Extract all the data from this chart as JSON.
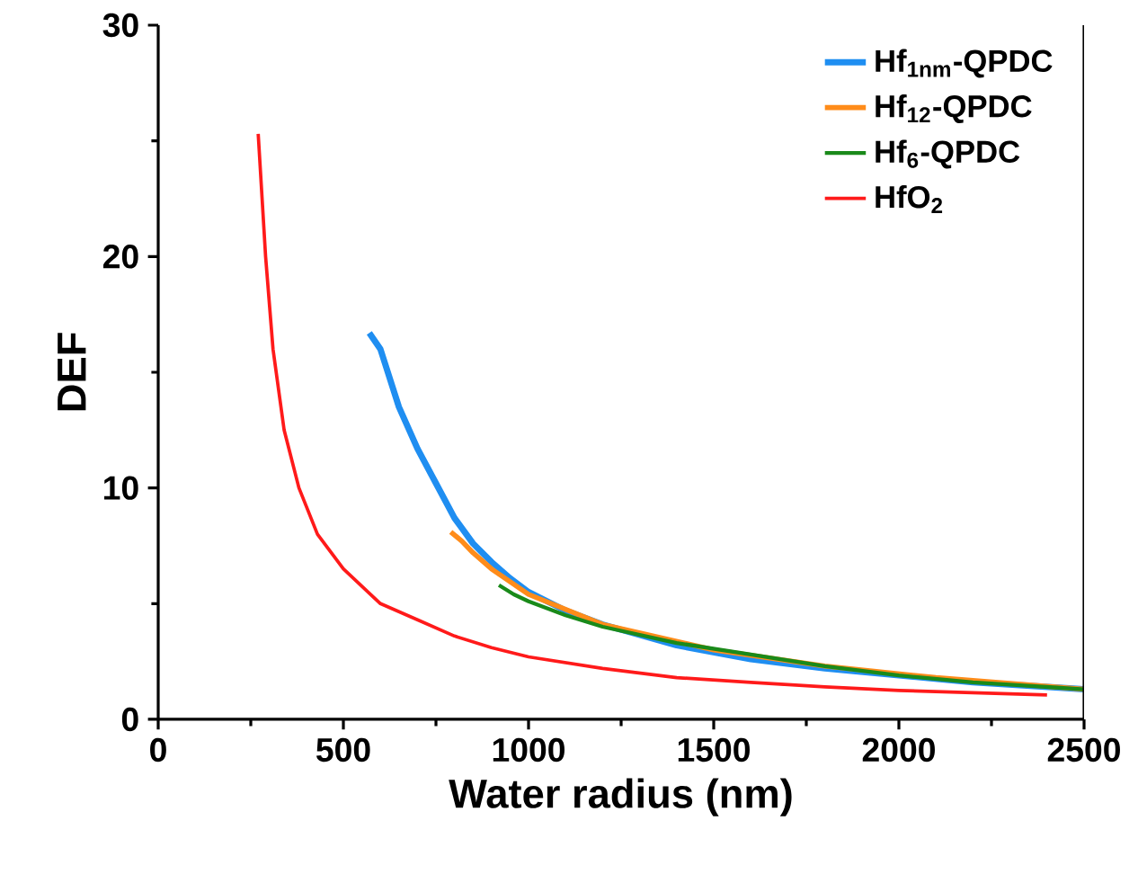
{
  "chart_data": {
    "type": "line",
    "xlabel": "Water radius (nm)",
    "ylabel": "DEF",
    "xlim": [
      0,
      2500
    ],
    "ylim": [
      0,
      30
    ],
    "xticks": [
      0,
      500,
      1000,
      1500,
      2000,
      2500
    ],
    "yticks": [
      0,
      10,
      20,
      30
    ],
    "grid": false,
    "legend": "top right",
    "marker": "none",
    "line_style": "solid",
    "series": [
      {
        "name": "Hf$_{1nm}$-QPDC",
        "color": "#1f8ef1",
        "x": [
          570,
          600,
          650,
          700,
          750,
          800,
          850,
          900,
          950,
          1000,
          1100,
          1200,
          1400,
          1600,
          1800,
          2000,
          2200,
          2500
        ],
        "values": [
          16.7,
          16,
          13.5,
          11.7,
          10.2,
          8.7,
          7.6,
          6.8,
          6.1,
          5.5,
          4.7,
          4.1,
          3.2,
          2.6,
          2.2,
          1.9,
          1.6,
          1.3
        ]
      },
      {
        "name": "Hf$_{12}$-QPDC",
        "color": "#ff8c1a",
        "x": [
          790,
          820,
          850,
          900,
          1000,
          1200,
          1500,
          1800,
          2100,
          2500
        ],
        "values": [
          8.1,
          7.7,
          7.2,
          6.5,
          5.4,
          4.1,
          3.0,
          2.3,
          1.8,
          1.3
        ]
      },
      {
        "name": "Hf$_{6}$-QPDC",
        "color": "#1a8a1a",
        "x": [
          920,
          960,
          1000,
          1100,
          1200,
          1400,
          1600,
          1800,
          2000,
          2200,
          2500
        ],
        "values": [
          5.8,
          5.4,
          5.1,
          4.5,
          4.0,
          3.3,
          2.8,
          2.3,
          1.9,
          1.6,
          1.3
        ]
      },
      {
        "name": "HfO$_{2}$",
        "color": "#ff1a1a",
        "x": [
          270,
          290,
          310,
          340,
          380,
          430,
          500,
          600,
          700,
          800,
          900,
          1000,
          1200,
          1400,
          1600,
          1800,
          2000,
          2200,
          2400
        ],
        "values": [
          25.3,
          20,
          16,
          12.5,
          10,
          8,
          6.5,
          5,
          4.3,
          3.6,
          3.1,
          2.7,
          2.2,
          1.8,
          1.6,
          1.4,
          1.25,
          1.15,
          1.05
        ]
      }
    ]
  }
}
